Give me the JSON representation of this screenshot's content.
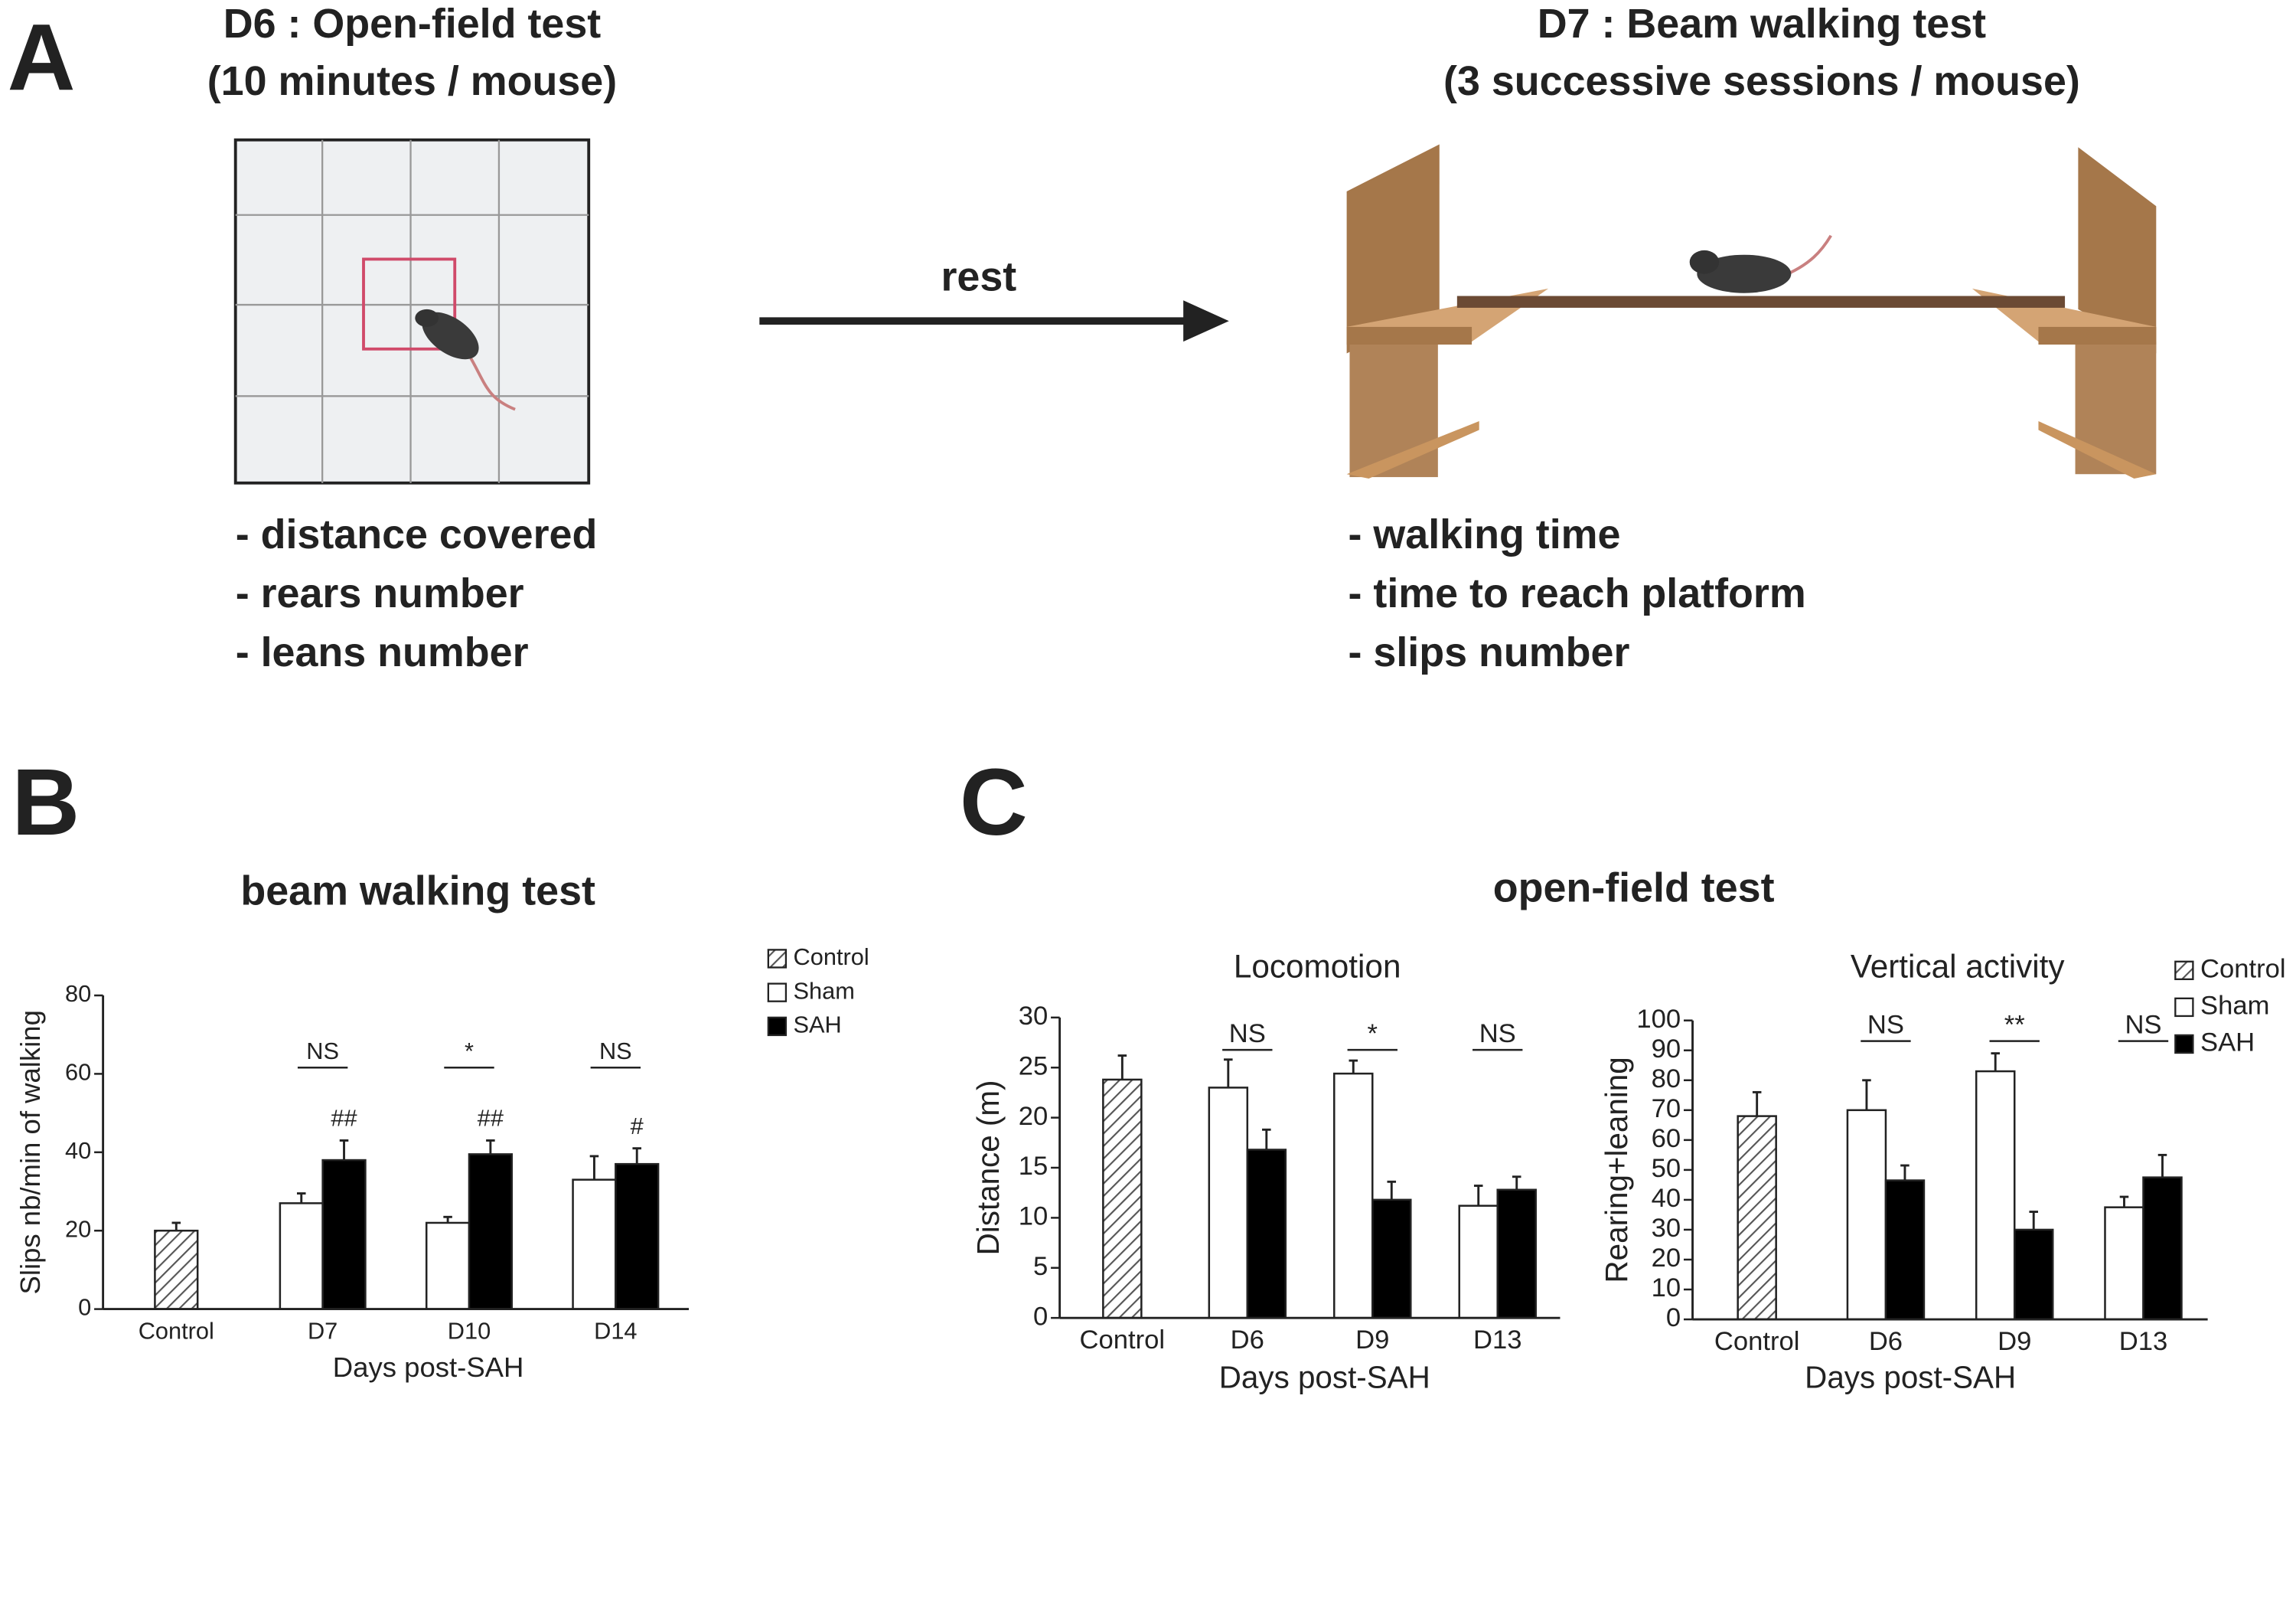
{
  "panel_a": {
    "label": "A",
    "left_title": [
      "D6 : Open-field test",
      "(10 minutes / mouse)"
    ],
    "left_items": [
      "- distance covered",
      "- rears number",
      "- leans number"
    ],
    "arrow_label": "rest",
    "right_title": [
      "D7 : Beam walking test",
      "(3 successive sessions / mouse)"
    ],
    "right_items": [
      "- walking time",
      "- time to reach platform",
      "- slips number"
    ]
  },
  "panel_b": {
    "label": "B"
  },
  "panel_c": {
    "label": "C",
    "title": "open-field test"
  },
  "chart_data": [
    {
      "type": "bar",
      "title": "beam walking test",
      "x_label": "Days post-SAH",
      "y_label": "Slips nb/min of walking",
      "categories": [
        "Control",
        "D7",
        "D10",
        "D14"
      ],
      "ylim": [
        0,
        80
      ],
      "yticks": [
        0,
        20,
        40,
        60,
        80
      ],
      "legend": true,
      "series": [
        {
          "name": "Control",
          "color": "#555555",
          "pattern": "hatch",
          "values": [
            20,
            null,
            null,
            null
          ],
          "errors": [
            2,
            null,
            null,
            null
          ]
        },
        {
          "name": "Sham",
          "color": "#ffffff",
          "values": [
            null,
            27,
            22,
            33
          ],
          "errors": [
            null,
            2.5,
            1.5,
            6
          ]
        },
        {
          "name": "SAH",
          "color": "#000000",
          "values": [
            null,
            38,
            39.5,
            37
          ],
          "errors": [
            null,
            5,
            3.5,
            4
          ],
          "marks": [
            null,
            "##",
            "##",
            "#"
          ]
        }
      ],
      "comparison_labels": [
        null,
        "NS",
        "*",
        "NS"
      ]
    },
    {
      "type": "bar",
      "title": "Locomotion",
      "x_label": "Days post-SAH",
      "y_label": "Distance (m)",
      "categories": [
        "Control",
        "D6",
        "D9",
        "D13"
      ],
      "ylim": [
        0,
        30
      ],
      "yticks": [
        0,
        5,
        10,
        15,
        20,
        25,
        30
      ],
      "legend": false,
      "series": [
        {
          "name": "Control",
          "color": "#555555",
          "pattern": "hatch",
          "values": [
            23.8,
            null,
            null,
            null
          ],
          "errors": [
            2.4,
            null,
            null,
            null
          ]
        },
        {
          "name": "Sham",
          "color": "#ffffff",
          "values": [
            null,
            23,
            24.4,
            11.2
          ],
          "errors": [
            null,
            2.8,
            1.3,
            2
          ]
        },
        {
          "name": "SAH",
          "color": "#000000",
          "values": [
            null,
            16.8,
            11.8,
            12.8
          ],
          "errors": [
            null,
            2,
            1.8,
            1.3
          ]
        }
      ],
      "comparison_labels": [
        null,
        "NS",
        "*",
        "NS"
      ]
    },
    {
      "type": "bar",
      "title": "Vertical activity",
      "x_label": "Days post-SAH",
      "y_label": "Rearing+leaning",
      "categories": [
        "Control",
        "D6",
        "D9",
        "D13"
      ],
      "ylim": [
        0,
        100
      ],
      "yticks": [
        0,
        10,
        20,
        30,
        40,
        50,
        60,
        70,
        80,
        90,
        100
      ],
      "legend": true,
      "series": [
        {
          "name": "Control",
          "color": "#555555",
          "pattern": "hatch",
          "values": [
            68,
            null,
            null,
            null
          ],
          "errors": [
            8,
            null,
            null,
            null
          ]
        },
        {
          "name": "Sham",
          "color": "#ffffff",
          "values": [
            null,
            70,
            83,
            37.5
          ],
          "errors": [
            null,
            10,
            6,
            3.5
          ]
        },
        {
          "name": "SAH",
          "color": "#000000",
          "values": [
            null,
            46.5,
            30,
            47.5
          ],
          "errors": [
            null,
            5,
            6,
            7.5
          ]
        }
      ],
      "comparison_labels": [
        null,
        "NS",
        "**",
        "NS"
      ]
    }
  ]
}
